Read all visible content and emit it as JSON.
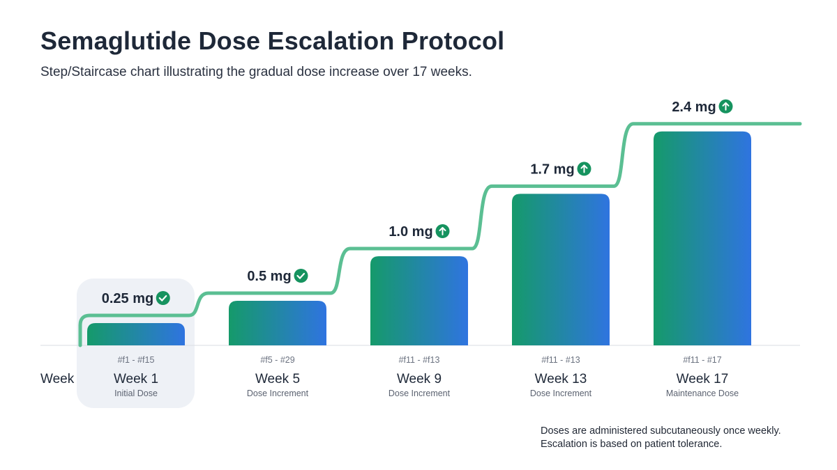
{
  "title": "Semaglutide Dose Escalation Protocol",
  "subtitle": "Step/Staircase chart illustrating the gradual dose increase over 17 weeks.",
  "note": [
    "Doses are administered subcutaneously once weekly.",
    "Escalation is based on patient tolerance."
  ],
  "colors": {
    "bar_start": "#159a6a",
    "bar_end": "#2f74e0",
    "step_line": "#5bbf93",
    "icon": "#16935f",
    "highlight": "#eef1f6",
    "baseline": "#d9dde3"
  },
  "chart_data": {
    "type": "bar",
    "subtype": "step",
    "xlabel": "Week",
    "ylabel": "",
    "ylim": [
      0,
      2.4
    ],
    "grid": false,
    "highlighted_index": 0,
    "categories": [
      "Week 1",
      "Week 5",
      "Week 9",
      "Week 13",
      "Week 17"
    ],
    "values": [
      0.25,
      0.5,
      1.0,
      1.7,
      2.4
    ],
    "value_labels": [
      "0.25 mg",
      "0.5 mg",
      "1.0 mg",
      "1.7 mg",
      "2.4 mg"
    ],
    "value_icons": [
      "check-circle-icon",
      "check-circle-icon",
      "arrow-up-circle-icon",
      "arrow-up-circle-icon",
      "arrow-up-circle-icon"
    ],
    "ranges": [
      "#f1 - #f15",
      "#f5 - #29",
      "#f11 - #f13",
      "#f11 - #13",
      "#f11 - #17"
    ],
    "phases": [
      "Initial Dose",
      "Dose Increment",
      "Dose Increment",
      "Dose Increment",
      "Maintenance Dose"
    ]
  }
}
